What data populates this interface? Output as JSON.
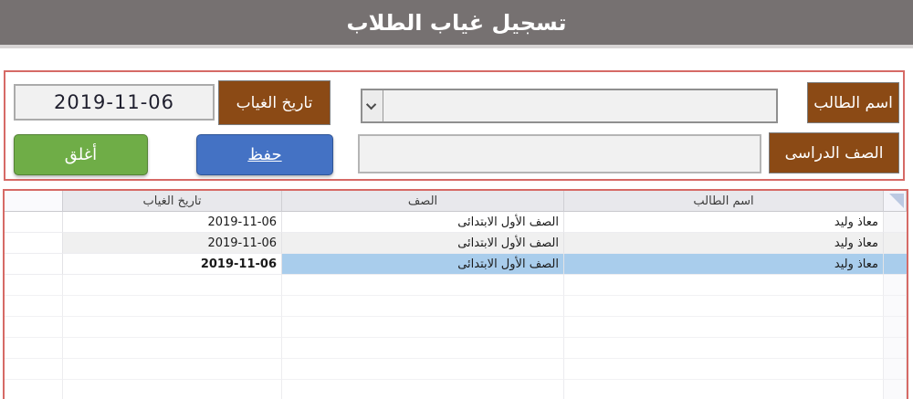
{
  "window": {
    "title": "تسجيل غياب الطلاب"
  },
  "form": {
    "student_name_label": "اسم الطالب",
    "student_name_value": "",
    "absence_date_label": "تاريخ الغياب",
    "absence_date_value": "2019-11-06",
    "class_label": "الصف الدراسى",
    "class_value": "",
    "save_button": "حفظ",
    "close_button": "أغلق"
  },
  "table": {
    "headers": {
      "student_name": "اسم الطالب",
      "class": "الصف",
      "absence_date": "تاريخ الغياب"
    },
    "rows": [
      {
        "student_name": "معاذ وليد",
        "class": "الصف الأول الابتدائى",
        "absence_date": "2019-11-06"
      },
      {
        "student_name": "معاذ وليد",
        "class": "الصف الأول الابتدائى",
        "absence_date": "2019-11-06"
      },
      {
        "student_name": "معاذ وليد",
        "class": "الصف الأول الابتدائى",
        "absence_date": "2019-11-06"
      }
    ],
    "selected_row_index": 2
  },
  "colors": {
    "titlebar_gray": "#767171",
    "accent_brown": "#8b4a15",
    "save_blue": "#4472c4",
    "close_green": "#6fad47",
    "selection_blue": "#a9cdec",
    "frame_red": "#d66a66"
  }
}
